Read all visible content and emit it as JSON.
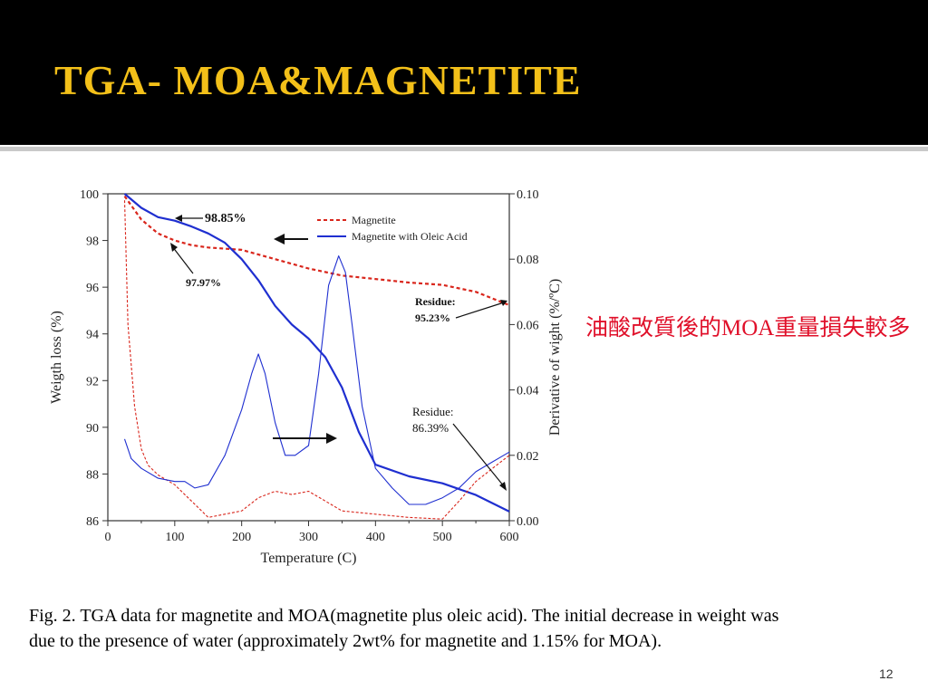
{
  "slide": {
    "title": "TGA- MOA&MAGNETITE",
    "note": "油酸改質後的MOA重量損失較多",
    "caption": "Fig. 2. TGA data for magnetite and MOA(magnetite plus oleic acid). The initial decrease in weight was due to the presence of water (approximately 2wt% for magnetite and 1.15% for MOA).",
    "page_number": "12",
    "colors": {
      "title_bg": "#000000",
      "title_text": "#f3c019",
      "note_text": "#e0102a"
    }
  },
  "chart_data": {
    "type": "line",
    "xlabel": "Temperature (C)",
    "ylabel": "Weigth loss (%)",
    "y2label": "Derivative of wight (%/ºC)",
    "xlim": [
      0,
      600
    ],
    "ylim": [
      86,
      100
    ],
    "y2lim": [
      0.0,
      0.1
    ],
    "xticks": [
      "0",
      "100",
      "200",
      "300",
      "400",
      "500",
      "600"
    ],
    "yticks": [
      "86",
      "88",
      "90",
      "92",
      "94",
      "96",
      "98",
      "100"
    ],
    "y2ticks": [
      "0.00",
      "0.02",
      "0.04",
      "0.06",
      "0.08",
      "0.10"
    ],
    "legend_position": "top-right",
    "colors": {
      "magnetite": "#d9261c",
      "moa": "#1f2fd0"
    },
    "series": [
      {
        "name": "Magnetite",
        "axis": "left",
        "style": "dashed",
        "color": "#d9261c",
        "x": [
          25,
          50,
          75,
          100,
          125,
          150,
          200,
          250,
          300,
          350,
          400,
          450,
          500,
          550,
          600
        ],
        "y": [
          99.9,
          98.9,
          98.3,
          98.0,
          97.8,
          97.7,
          97.6,
          97.2,
          96.8,
          96.5,
          96.35,
          96.2,
          96.1,
          95.8,
          95.23
        ]
      },
      {
        "name": "Magnetite with Oleic Acid",
        "axis": "left",
        "style": "solid",
        "color": "#1f2fd0",
        "x": [
          25,
          50,
          75,
          100,
          125,
          150,
          175,
          200,
          225,
          250,
          275,
          300,
          325,
          350,
          375,
          400,
          450,
          500,
          550,
          600
        ],
        "y": [
          100,
          99.4,
          99.0,
          98.85,
          98.6,
          98.3,
          97.9,
          97.2,
          96.3,
          95.2,
          94.4,
          93.8,
          93.0,
          91.7,
          89.8,
          88.4,
          87.9,
          87.6,
          87.1,
          86.39
        ]
      },
      {
        "name": "Magnetite (derivative)",
        "axis": "right",
        "style": "dashed",
        "color": "#d9261c",
        "thin": true,
        "x": [
          25,
          30,
          40,
          50,
          60,
          75,
          100,
          125,
          150,
          175,
          200,
          225,
          250,
          275,
          300,
          325,
          350,
          400,
          450,
          500,
          525,
          550,
          575,
          600
        ],
        "y": [
          0.098,
          0.06,
          0.035,
          0.022,
          0.017,
          0.014,
          0.011,
          0.006,
          0.001,
          0.002,
          0.003,
          0.007,
          0.009,
          0.008,
          0.009,
          0.006,
          0.003,
          0.002,
          0.001,
          0.0005,
          0.006,
          0.012,
          0.016,
          0.02
        ]
      },
      {
        "name": "Magnetite with Oleic Acid (derivative)",
        "axis": "right",
        "style": "solid",
        "color": "#1f2fd0",
        "thin": true,
        "x": [
          25,
          35,
          50,
          75,
          100,
          115,
          130,
          150,
          175,
          200,
          215,
          225,
          235,
          250,
          265,
          280,
          300,
          315,
          330,
          345,
          355,
          365,
          380,
          400,
          425,
          450,
          475,
          500,
          525,
          550,
          575,
          600
        ],
        "y": [
          0.025,
          0.019,
          0.016,
          0.013,
          0.012,
          0.012,
          0.01,
          0.011,
          0.02,
          0.034,
          0.045,
          0.051,
          0.045,
          0.03,
          0.02,
          0.02,
          0.023,
          0.045,
          0.072,
          0.081,
          0.076,
          0.06,
          0.035,
          0.016,
          0.01,
          0.005,
          0.005,
          0.007,
          0.01,
          0.015,
          0.018,
          0.021
        ]
      }
    ],
    "annotations": [
      {
        "text": "98.85%",
        "x": 100,
        "y": 98.85
      },
      {
        "text": "97.97%",
        "x": 100,
        "y": 97.97
      },
      {
        "text": "Residue:",
        "text2": "95.23%",
        "x": 600,
        "y": 95.23
      },
      {
        "text": "Residue:",
        "text2": "86.39%",
        "x": 600,
        "y": 86.39
      }
    ]
  }
}
